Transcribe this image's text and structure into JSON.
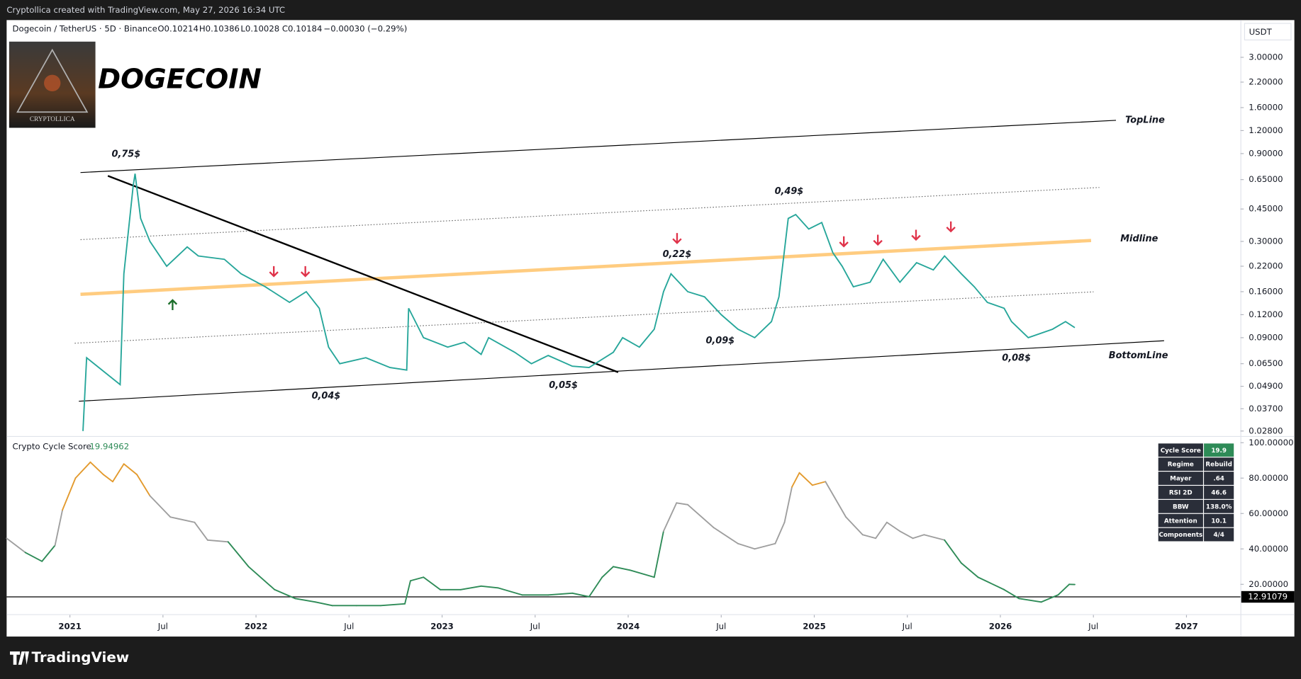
{
  "header": {
    "watermark": "Cryptollica created with TradingView.com, May 27, 2026 16:34 UTC",
    "symbol": "Dogecoin / TetherUS · 5D · Binance",
    "ohlc": [
      "O0.10214",
      "H0.10386",
      "L0.10028",
      "C0.10184",
      "−0.00030 (−0.29%)"
    ],
    "big_title": "DOGECOIN",
    "logo_text": "CRYPTOLLICA",
    "currency": "USDT"
  },
  "footer": {
    "brand": "TradingView"
  },
  "chart_data": [
    {
      "type": "line",
      "yscale": "log",
      "color": "#26a69a",
      "xlim": [
        2020.66,
        2027.29
      ],
      "ylim": [
        0.0263,
        4.78
      ],
      "yticks": [
        {
          "value": 3,
          "label": "3.00000"
        },
        {
          "value": 2.2,
          "label": "2.20000"
        },
        {
          "value": 1.6,
          "label": "1.60000"
        },
        {
          "value": 1.2,
          "label": "1.20000"
        },
        {
          "value": 0.9,
          "label": "0.90000"
        },
        {
          "value": 0.65,
          "label": "0.65000"
        },
        {
          "value": 0.45,
          "label": "0.45000"
        },
        {
          "value": 0.3,
          "label": "0.30000"
        },
        {
          "value": 0.22,
          "label": "0.22000"
        },
        {
          "value": 0.16,
          "label": "0.16000"
        },
        {
          "value": 0.12,
          "label": "0.12000"
        },
        {
          "value": 0.09,
          "label": "0.09000"
        },
        {
          "value": 0.065,
          "label": "0.06500"
        },
        {
          "value": 0.049,
          "label": "0.04900"
        },
        {
          "value": 0.037,
          "label": "0.03700"
        },
        {
          "value": 0.028,
          "label": "0.02800"
        }
      ],
      "x": [
        2021.07,
        2021.09,
        2021.27,
        2021.29,
        2021.34,
        2021.35,
        2021.38,
        2021.43,
        2021.52,
        2021.63,
        2021.69,
        2021.83,
        2021.92,
        2022.05,
        2022.18,
        2022.27,
        2022.34,
        2022.39,
        2022.45,
        2022.59,
        2022.72,
        2022.81,
        2022.82,
        2022.9,
        2023.03,
        2023.12,
        2023.21,
        2023.25,
        2023.39,
        2023.48,
        2023.57,
        2023.7,
        2023.79,
        2023.92,
        2023.97,
        2024.06,
        2024.14,
        2024.19,
        2024.23,
        2024.32,
        2024.41,
        2024.5,
        2024.59,
        2024.68,
        2024.77,
        2024.81,
        2024.86,
        2024.9,
        2024.97,
        2025.04,
        2025.1,
        2025.15,
        2025.21,
        2025.3,
        2025.37,
        2025.46,
        2025.55,
        2025.64,
        2025.7,
        2025.79,
        2025.86,
        2025.93,
        2026.02,
        2026.06,
        2026.15,
        2026.28,
        2026.35,
        2026.4
      ],
      "values": [
        0.028,
        0.07,
        0.05,
        0.2,
        0.6,
        0.7,
        0.4,
        0.3,
        0.22,
        0.28,
        0.25,
        0.24,
        0.2,
        0.17,
        0.14,
        0.16,
        0.13,
        0.08,
        0.065,
        0.07,
        0.062,
        0.06,
        0.13,
        0.09,
        0.08,
        0.085,
        0.073,
        0.09,
        0.075,
        0.065,
        0.072,
        0.063,
        0.062,
        0.075,
        0.09,
        0.08,
        0.1,
        0.16,
        0.2,
        0.16,
        0.15,
        0.12,
        0.1,
        0.09,
        0.11,
        0.15,
        0.4,
        0.42,
        0.35,
        0.38,
        0.26,
        0.22,
        0.17,
        0.18,
        0.24,
        0.18,
        0.23,
        0.21,
        0.25,
        0.2,
        0.17,
        0.14,
        0.13,
        0.11,
        0.09,
        0.1,
        0.11,
        0.102
      ],
      "annotations": [
        "0,75$",
        "0,04$",
        "0,05$",
        "0,22$",
        "0,09$",
        "0,49$",
        "0,08$",
        "TopLine",
        "Midline",
        "BottomLine"
      ]
    },
    {
      "type": "line",
      "title": "Crypto Cycle Score",
      "current": 19.94962,
      "hline": 12.91079,
      "colors": [
        "#2e8b57",
        "#9e9e9e",
        "#e39a2d"
      ],
      "xlim": [
        2020.66,
        2027.29
      ],
      "ylim": [
        3.6,
        103.3
      ],
      "yticks": [
        {
          "value": 100,
          "label": "100.00000"
        },
        {
          "value": 80,
          "label": "80.00000"
        },
        {
          "value": 60,
          "label": "60.00000"
        },
        {
          "value": 40,
          "label": "40.00000"
        },
        {
          "value": 20,
          "label": "20.00000"
        }
      ],
      "xticks": [
        2021,
        {
          "value": 2021.5,
          "label": "Jul"
        },
        2022,
        {
          "value": 2022.5,
          "label": "Jul"
        },
        2023,
        {
          "value": 2023.5,
          "label": "Jul"
        },
        2024,
        {
          "value": 2024.5,
          "label": "Jul"
        },
        2025,
        {
          "value": 2025.5,
          "label": "Jul"
        },
        2026,
        {
          "value": 2026.5,
          "label": "Jul"
        },
        2027
      ],
      "x": [
        2020.66,
        2020.76,
        2020.85,
        2020.92,
        2020.96,
        2021.03,
        2021.11,
        2021.18,
        2021.23,
        2021.29,
        2021.36,
        2021.43,
        2021.54,
        2021.67,
        2021.74,
        2021.85,
        2021.96,
        2022.1,
        2022.21,
        2022.32,
        2022.41,
        2022.54,
        2022.67,
        2022.8,
        2022.83,
        2022.9,
        2022.99,
        2023.1,
        2023.21,
        2023.3,
        2023.43,
        2023.57,
        2023.7,
        2023.79,
        2023.86,
        2023.92,
        2024.01,
        2024.14,
        2024.19,
        2024.26,
        2024.32,
        2024.46,
        2024.59,
        2024.68,
        2024.79,
        2024.84,
        2024.88,
        2024.92,
        2024.99,
        2025.06,
        2025.17,
        2025.26,
        2025.33,
        2025.39,
        2025.46,
        2025.53,
        2025.59,
        2025.7,
        2025.79,
        2025.88,
        2026.02,
        2026.1,
        2026.22,
        2026.31,
        2026.37,
        2026.4
      ],
      "values": [
        46,
        38,
        33,
        42,
        62,
        80,
        89,
        82,
        78,
        88,
        82,
        70,
        58,
        55,
        45,
        44,
        30,
        17,
        12,
        10,
        8,
        8,
        8,
        9,
        22,
        24,
        17,
        17,
        19,
        18,
        14,
        14,
        15,
        13,
        24,
        30,
        28,
        24,
        50,
        66,
        65,
        52,
        43,
        40,
        43,
        55,
        75,
        83,
        76,
        78,
        58,
        48,
        46,
        55,
        50,
        46,
        48,
        45,
        32,
        24,
        17,
        12,
        10,
        14,
        20,
        19.9
      ],
      "table": {
        "rows": [
          [
            "Cycle Score",
            "19.9"
          ],
          [
            "Regime",
            "Rebuild"
          ],
          [
            "Mayer",
            ".64"
          ],
          [
            "RSI 2D",
            "46.6"
          ],
          [
            "BBW",
            "138.0%"
          ],
          [
            "Attention",
            "10.1"
          ],
          [
            "Components",
            "4/4"
          ]
        ]
      }
    }
  ]
}
